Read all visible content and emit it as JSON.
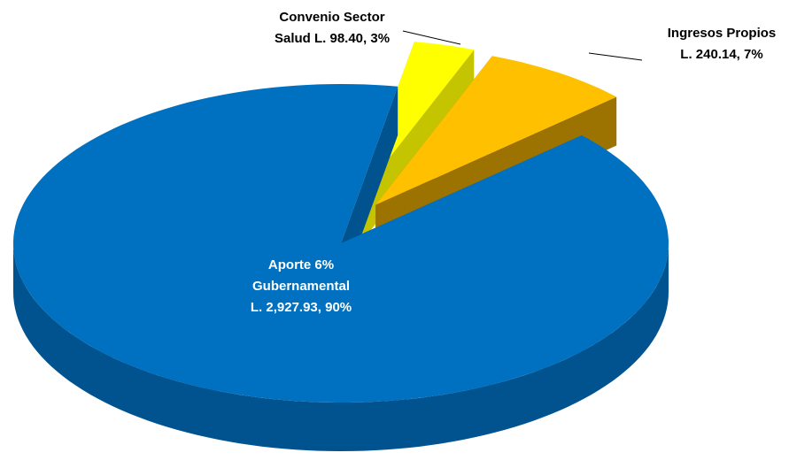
{
  "chart_data": {
    "type": "pie",
    "values": [
      98.4,
      240.14,
      2927.93
    ],
    "value_labels": [
      [
        "Convenio Sector",
        "Salud L. 98.40, 3%"
      ],
      [
        "Ingresos Propios",
        "L. 240.14, 7%"
      ],
      [
        "Aporte 6%",
        "Gubernamental",
        "L. 2,927.93,  90%"
      ]
    ],
    "colors": [
      "#FFFF00",
      "#FFC000",
      "#0070C0"
    ],
    "side_colors": [
      "#C4C400",
      "#9C7300",
      "#00538F"
    ]
  }
}
